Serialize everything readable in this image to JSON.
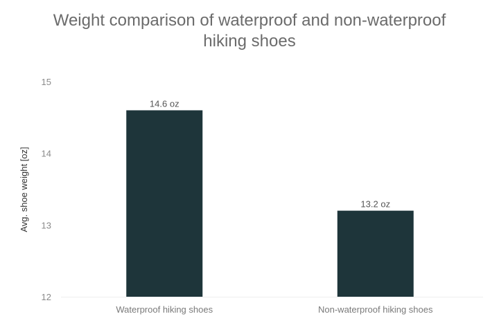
{
  "chart_data": {
    "type": "bar",
    "title_lines": [
      "Weight comparison of waterproof and non-waterproof",
      "hiking shoes"
    ],
    "xlabel": "",
    "ylabel": "Avg. shoe weight [oz]",
    "categories": [
      "Waterproof hiking shoes",
      "Non-waterproof hiking shoes"
    ],
    "values": [
      14.6,
      13.2
    ],
    "data_labels": [
      "14.6 oz",
      "13.2 oz"
    ],
    "ylim": [
      12,
      15
    ],
    "yticks": [
      "12",
      "13",
      "14",
      "15"
    ],
    "grid": false,
    "bar_color": "#1e353a"
  }
}
